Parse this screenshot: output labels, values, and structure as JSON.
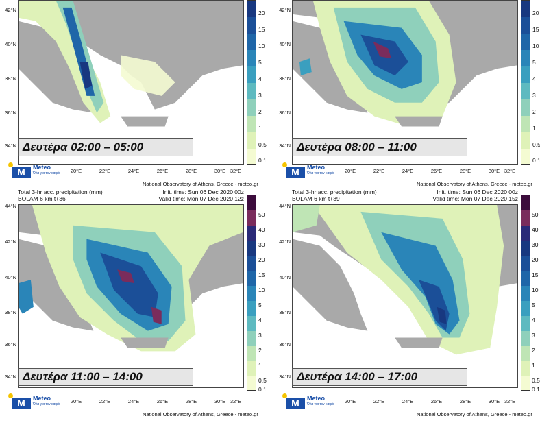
{
  "panels": [
    {
      "day_label": "Δευτέρα 02:00 – 05:00",
      "title_line1": "",
      "title_line2": "",
      "init_time": "",
      "valid_time": "",
      "colorbar_labels": [
        "20",
        "15",
        "10",
        "5",
        "4",
        "3",
        "2",
        "1",
        "0.5",
        "0.1"
      ]
    },
    {
      "day_label": "Δευτέρα 08:00 – 11:00",
      "title_line1": "",
      "title_line2": "",
      "init_time": "",
      "valid_time": "",
      "colorbar_labels": [
        "20",
        "15",
        "10",
        "5",
        "4",
        "3",
        "2",
        "1",
        "0.5",
        "0.1"
      ]
    },
    {
      "day_label": "Δευτέρα 11:00 – 14:00",
      "title_line1": "Total 3-hr acc. precipitation (mm)",
      "title_line2": "BOLAM 6 km t+36",
      "init_time": "Init. time: Sun 06 Dec 2020 00z",
      "valid_time": "Valid time: Mon 07 Dec 2020 12z",
      "colorbar_labels": [
        "50",
        "40",
        "30",
        "20",
        "15",
        "10",
        "5",
        "4",
        "3",
        "2",
        "1",
        "0.5",
        "0.1"
      ]
    },
    {
      "day_label": "Δευτέρα 14:00 – 17:00",
      "title_line1": "Total 3-hr acc. precipitation (mm)",
      "title_line2": "BOLAM 6 km t+39",
      "init_time": "Init. time: Sun 06 Dec 2020 00z",
      "valid_time": "Valid time: Mon 07 Dec 2020 15z",
      "colorbar_labels": [
        "50",
        "40",
        "30",
        "20",
        "15",
        "10",
        "5",
        "4",
        "3",
        "2",
        "1",
        "0.5",
        "0.1"
      ]
    }
  ],
  "lat_labels_top": [
    "42°N",
    "40°N",
    "38°N",
    "36°N",
    "34°N"
  ],
  "lat_labels_bottom": [
    "44°N",
    "42°N",
    "40°N",
    "38°N",
    "36°N",
    "34°N"
  ],
  "lon_labels": [
    "20°E",
    "22°E",
    "24°E",
    "26°E",
    "28°E",
    "30°E",
    "32°E"
  ],
  "credit": "National Observatory of Athens, Greece - meteo.gr",
  "logo": {
    "name": "Meteo",
    "tagline": "Όλα για τον καιρό"
  },
  "colors": {
    "land": "#a9a9a9",
    "sea": "#ffffff",
    "precip_0_1": "#f4fbd2",
    "precip_0_5": "#dff2b8",
    "precip_1": "#bfe5b5",
    "precip_2": "#8fd0bb",
    "precip_3": "#5ebac0",
    "precip_4": "#3a9fbf",
    "precip_5": "#2a85b8",
    "precip_10": "#1f66a8",
    "precip_15": "#1b4f98",
    "precip_20": "#183880",
    "precip_30": "#2a2a78",
    "precip_40": "#7a2c5c",
    "precip_50": "#3c0c3c"
  }
}
